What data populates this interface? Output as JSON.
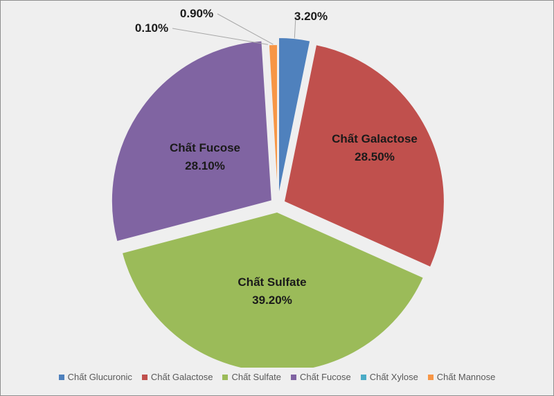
{
  "chart_data": {
    "type": "pie",
    "legend_position": "bottom",
    "slices": [
      {
        "name": "Chất Glucuronic",
        "value": 3.2,
        "label": "3.20%",
        "color": "#4f81bd"
      },
      {
        "name": "Chất Galactose",
        "value": 28.5,
        "label": "28.50%",
        "color": "#c0504d"
      },
      {
        "name": "Chất Sulfate",
        "value": 39.2,
        "label": "39.20%",
        "color": "#9bbb59"
      },
      {
        "name": "Chất Fucose",
        "value": 28.1,
        "label": "28.10%",
        "color": "#8064a2"
      },
      {
        "name": "Chất Xylose",
        "value": 0.1,
        "label": "0.10%",
        "color": "#4bacc6"
      },
      {
        "name": "Chất Mannose",
        "value": 0.9,
        "label": "0.90%",
        "color": "#f79646"
      }
    ]
  }
}
